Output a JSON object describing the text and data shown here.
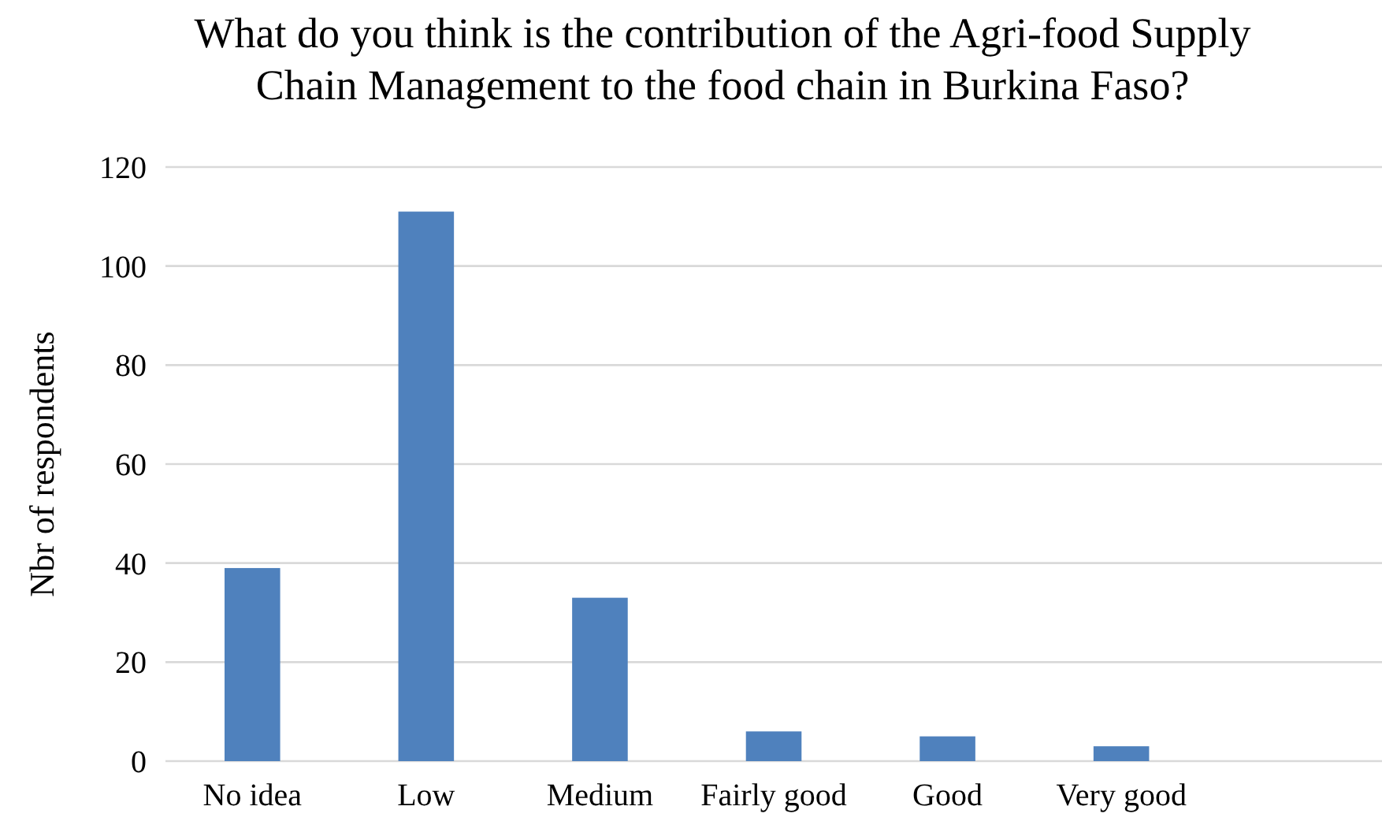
{
  "chart_data": {
    "type": "bar",
    "title": "What do you think is the contribution of the Agri-food Supply\nChain Management to the food chain in Burkina Faso?",
    "ylabel": "Nbr of respondents",
    "categories": [
      "No idea",
      "Low",
      "Medium",
      "Fairly good",
      "Good",
      "Very good",
      null
    ],
    "values": [
      39,
      111,
      33,
      6,
      5,
      3,
      null
    ],
    "color": "#4f81bd",
    "ylim": [
      0,
      120
    ],
    "yticks": [
      0,
      20,
      40,
      60,
      80,
      100,
      120
    ],
    "grid": "y"
  }
}
